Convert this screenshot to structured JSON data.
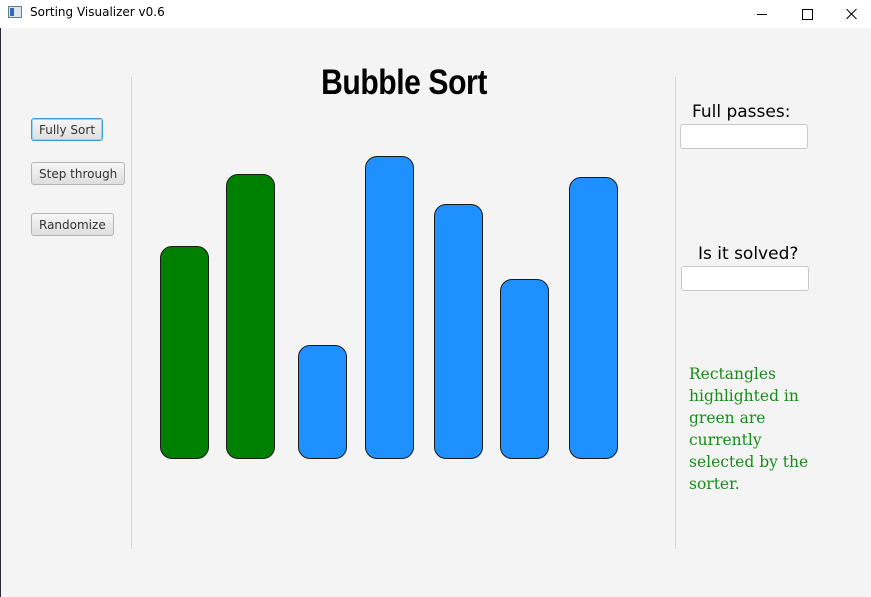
{
  "window": {
    "title": "Sorting Visualizer v0.6",
    "icon": "app-window-icon"
  },
  "buttons": {
    "fully_sort": "Fully Sort",
    "step_through": "Step through",
    "randomize": "Randomize"
  },
  "main": {
    "title": "Bubble Sort"
  },
  "bars": [
    {
      "value": 71,
      "state": "selected"
    },
    {
      "value": 95,
      "state": "selected"
    },
    {
      "value": 38,
      "state": "default"
    },
    {
      "value": 101,
      "state": "default"
    },
    {
      "value": 85,
      "state": "default"
    },
    {
      "value": 60,
      "state": "default"
    },
    {
      "value": 94,
      "state": "default"
    }
  ],
  "colors": {
    "selected": "#008000",
    "default": "#1e90ff",
    "note": "#1a8a1a"
  },
  "right_panel": {
    "full_passes_label": "Full passes:",
    "full_passes_value": "",
    "solved_label": "Is it solved?",
    "solved_value": "",
    "note": "Rectangles highlighted in green are currently selected by the sorter."
  }
}
